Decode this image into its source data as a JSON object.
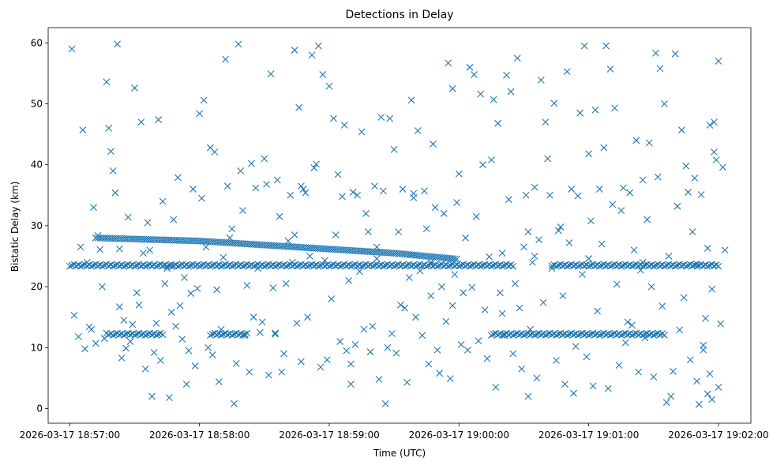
{
  "chart_data": {
    "type": "scatter",
    "title": "Detections in Delay",
    "xlabel": "Time (UTC)",
    "ylabel": "Bistatic Delay (km)",
    "marker": "x",
    "color": "#1f77b4",
    "grid": false,
    "legend": "none",
    "xlim": [
      "2026-03-17 18:56:50",
      "2026-03-17 19:02:15"
    ],
    "ylim": [
      -2.4,
      62.5
    ],
    "x_ticks": [
      "2026-03-17 18:57:00",
      "2026-03-17 18:58:00",
      "2026-03-17 18:59:00",
      "2026-03-17 19:00:00",
      "2026-03-17 19:01:00",
      "2026-03-17 19:02:00"
    ],
    "y_ticks": [
      0,
      10,
      20,
      30,
      40,
      50,
      60
    ],
    "bands": [
      {
        "y": 23.5,
        "segments": [
          [
            "18:57:00",
            "19:00:25"
          ],
          [
            "19:00:43",
            "19:02:00"
          ]
        ],
        "step_s": 1
      },
      {
        "y": 12.2,
        "segments": [
          [
            "18:57:17",
            "18:57:43"
          ],
          [
            "18:58:05",
            "18:58:22"
          ],
          [
            "19:00:15",
            "19:01:35"
          ]
        ],
        "step_s": 1
      },
      {
        "from": [
          [
            "18:57:12",
            28.0
          ],
          [
            "18:58:00",
            27.5
          ],
          [
            "18:58:45",
            26.5
          ],
          [
            "18:59:30",
            25.5
          ],
          [
            "19:00:00",
            24.5
          ]
        ],
        "step_s": 1
      }
    ],
    "points": [
      [
        "18:57:01",
        59.0
      ],
      [
        "18:57:06",
        45.7
      ],
      [
        "18:57:11",
        33.0
      ],
      [
        "18:57:13",
        28.4
      ],
      [
        "18:57:14",
        26.1
      ],
      [
        "18:57:17",
        53.6
      ],
      [
        "18:57:18",
        46.0
      ],
      [
        "18:57:19",
        42.2
      ],
      [
        "18:57:20",
        39.0
      ],
      [
        "18:57:21",
        35.4
      ],
      [
        "18:57:22",
        59.8
      ],
      [
        "18:57:23",
        16.7
      ],
      [
        "18:57:25",
        14.5
      ],
      [
        "18:57:27",
        31.4
      ],
      [
        "18:57:30",
        52.6
      ],
      [
        "18:57:33",
        47.0
      ],
      [
        "18:57:35",
        6.5
      ],
      [
        "18:57:38",
        2.0
      ],
      [
        "18:57:41",
        47.4
      ],
      [
        "18:57:43",
        34.0
      ],
      [
        "18:57:46",
        1.8
      ],
      [
        "18:57:50",
        37.9
      ],
      [
        "18:57:54",
        4.0
      ],
      [
        "18:57:57",
        36.0
      ],
      [
        "18:58:00",
        48.4
      ],
      [
        "18:58:02",
        50.6
      ],
      [
        "18:58:05",
        42.8
      ],
      [
        "18:58:07",
        42.1
      ],
      [
        "18:58:09",
        4.4
      ],
      [
        "18:58:12",
        57.3
      ],
      [
        "18:58:14",
        28.0
      ],
      [
        "18:58:16",
        0.8
      ],
      [
        "18:58:18",
        59.8
      ],
      [
        "18:58:20",
        32.5
      ],
      [
        "18:58:22",
        20.2
      ],
      [
        "18:58:26",
        36.2
      ],
      [
        "18:58:30",
        41.0
      ],
      [
        "18:58:33",
        54.9
      ],
      [
        "18:58:35",
        12.4
      ],
      [
        "18:58:38",
        6.0
      ],
      [
        "18:58:41",
        27.5
      ],
      [
        "18:58:44",
        58.8
      ],
      [
        "18:58:46",
        49.4
      ],
      [
        "18:58:49",
        35.4
      ],
      [
        "18:58:52",
        58.0
      ],
      [
        "18:58:54",
        40.1
      ],
      [
        "18:58:55",
        59.5
      ],
      [
        "18:58:57",
        54.8
      ],
      [
        "18:59:00",
        52.9
      ],
      [
        "18:59:02",
        47.6
      ],
      [
        "18:59:04",
        38.4
      ],
      [
        "18:59:07",
        46.5
      ],
      [
        "18:59:10",
        7.3
      ],
      [
        "18:59:13",
        35.0
      ],
      [
        "18:59:15",
        45.4
      ],
      [
        "18:59:18",
        29.0
      ],
      [
        "18:59:20",
        13.5
      ],
      [
        "18:59:23",
        4.8
      ],
      [
        "18:59:26",
        0.8
      ],
      [
        "18:59:28",
        47.6
      ],
      [
        "18:59:30",
        42.5
      ],
      [
        "18:59:33",
        17.0
      ],
      [
        "18:59:35",
        16.5
      ],
      [
        "18:59:38",
        50.6
      ],
      [
        "18:59:41",
        45.6
      ],
      [
        "18:59:44",
        35.7
      ],
      [
        "18:59:46",
        7.3
      ],
      [
        "18:59:48",
        43.4
      ],
      [
        "18:59:51",
        5.8
      ],
      [
        "18:59:53",
        32.0
      ],
      [
        "18:59:55",
        56.7
      ],
      [
        "18:59:57",
        52.5
      ],
      [
        "19:00:00",
        38.5
      ],
      [
        "19:00:02",
        19.0
      ],
      [
        "19:00:05",
        56.0
      ],
      [
        "19:00:07",
        54.8
      ],
      [
        "19:00:10",
        51.6
      ],
      [
        "19:00:13",
        8.2
      ],
      [
        "19:00:16",
        50.7
      ],
      [
        "19:00:18",
        46.8
      ],
      [
        "19:00:20",
        15.6
      ],
      [
        "19:00:22",
        54.7
      ],
      [
        "19:00:24",
        52.0
      ],
      [
        "19:00:27",
        57.5
      ],
      [
        "19:00:30",
        26.5
      ],
      [
        "19:00:32",
        2.0
      ],
      [
        "19:00:35",
        36.3
      ],
      [
        "19:00:38",
        53.9
      ],
      [
        "19:00:40",
        47.0
      ],
      [
        "19:00:42",
        35.0
      ],
      [
        "19:00:44",
        50.1
      ],
      [
        "19:00:47",
        29.8
      ],
      [
        "19:00:50",
        55.3
      ],
      [
        "19:00:53",
        2.5
      ],
      [
        "19:00:56",
        48.5
      ],
      [
        "19:00:58",
        59.5
      ],
      [
        "19:01:00",
        41.8
      ],
      [
        "19:01:03",
        49.0
      ],
      [
        "19:01:05",
        36.0
      ],
      [
        "19:01:08",
        59.5
      ],
      [
        "19:01:10",
        55.7
      ],
      [
        "19:01:12",
        49.3
      ],
      [
        "19:01:15",
        32.5
      ],
      [
        "19:01:18",
        14.2
      ],
      [
        "19:01:20",
        13.7
      ],
      [
        "19:01:23",
        6.0
      ],
      [
        "19:01:25",
        37.5
      ],
      [
        "19:01:28",
        43.6
      ],
      [
        "19:01:31",
        58.3
      ],
      [
        "19:01:33",
        55.8
      ],
      [
        "19:01:36",
        1.0
      ],
      [
        "19:01:38",
        2.0
      ],
      [
        "19:01:40",
        58.2
      ],
      [
        "19:01:43",
        45.7
      ],
      [
        "19:01:46",
        35.5
      ],
      [
        "19:01:49",
        37.8
      ],
      [
        "19:01:51",
        0.7
      ],
      [
        "19:01:53",
        10.4
      ],
      [
        "19:01:56",
        46.5
      ],
      [
        "19:01:58",
        47.0
      ],
      [
        "19:02:00",
        3.5
      ],
      [
        "18:57:02",
        15.3
      ],
      [
        "18:57:04",
        11.8
      ],
      [
        "18:57:07",
        9.8
      ],
      [
        "18:57:09",
        13.4
      ],
      [
        "18:57:12",
        10.7
      ],
      [
        "18:57:15",
        20.0
      ],
      [
        "18:57:16",
        11.5
      ],
      [
        "18:57:24",
        8.3
      ],
      [
        "18:57:26",
        9.9
      ],
      [
        "18:57:28",
        11.0
      ],
      [
        "18:57:29",
        13.8
      ],
      [
        "18:57:31",
        19.0
      ],
      [
        "18:57:32",
        17.0
      ],
      [
        "18:57:34",
        25.5
      ],
      [
        "18:57:36",
        30.5
      ],
      [
        "18:57:37",
        26.0
      ],
      [
        "18:57:39",
        9.2
      ],
      [
        "18:57:40",
        14.0
      ],
      [
        "18:57:42",
        7.9
      ],
      [
        "18:57:44",
        20.5
      ],
      [
        "18:57:45",
        23.0
      ],
      [
        "18:57:47",
        15.8
      ],
      [
        "18:57:48",
        31.0
      ],
      [
        "18:57:49",
        13.5
      ],
      [
        "18:57:51",
        16.9
      ],
      [
        "18:57:52",
        11.4
      ],
      [
        "18:57:53",
        21.5
      ],
      [
        "18:57:55",
        9.5
      ],
      [
        "18:57:56",
        18.9
      ],
      [
        "18:57:58",
        7.0
      ],
      [
        "18:57:59",
        19.7
      ],
      [
        "18:58:01",
        34.5
      ],
      [
        "18:58:03",
        26.5
      ],
      [
        "18:58:04",
        10.0
      ],
      [
        "18:58:06",
        8.8
      ],
      [
        "18:58:08",
        19.5
      ],
      [
        "18:58:10",
        13.0
      ],
      [
        "18:58:11",
        24.8
      ],
      [
        "18:58:13",
        36.5
      ],
      [
        "18:58:15",
        29.5
      ],
      [
        "18:58:17",
        7.4
      ],
      [
        "18:58:19",
        39.0
      ],
      [
        "18:58:21",
        12.0
      ],
      [
        "18:58:23",
        6.0
      ],
      [
        "18:58:24",
        40.2
      ],
      [
        "18:58:25",
        15.0
      ],
      [
        "18:58:27",
        23.0
      ],
      [
        "18:58:28",
        12.5
      ],
      [
        "18:58:29",
        14.2
      ],
      [
        "18:58:31",
        36.8
      ],
      [
        "18:58:32",
        5.5
      ],
      [
        "18:58:34",
        19.8
      ],
      [
        "18:58:36",
        37.5
      ],
      [
        "18:58:37",
        31.5
      ],
      [
        "18:58:39",
        9.0
      ],
      [
        "18:58:40",
        20.5
      ],
      [
        "18:58:42",
        35.0
      ],
      [
        "18:58:43",
        24.0
      ],
      [
        "18:58:45",
        14.0
      ],
      [
        "18:58:47",
        7.7
      ],
      [
        "18:58:48",
        36.0
      ],
      [
        "18:58:50",
        15.0
      ],
      [
        "18:58:51",
        25.0
      ],
      [
        "18:58:53",
        39.5
      ],
      [
        "18:58:56",
        6.8
      ],
      [
        "18:58:58",
        24.3
      ],
      [
        "18:58:59",
        8.0
      ],
      [
        "18:59:01",
        18.0
      ],
      [
        "18:59:03",
        28.5
      ],
      [
        "18:59:05",
        11.0
      ],
      [
        "18:59:06",
        34.8
      ],
      [
        "18:59:08",
        9.5
      ],
      [
        "18:59:09",
        21.0
      ],
      [
        "18:59:11",
        35.5
      ],
      [
        "18:59:12",
        10.5
      ],
      [
        "18:59:14",
        22.5
      ],
      [
        "18:59:16",
        13.0
      ],
      [
        "18:59:17",
        32.0
      ],
      [
        "18:59:19",
        9.3
      ],
      [
        "18:59:21",
        36.5
      ],
      [
        "18:59:22",
        26.5
      ],
      [
        "18:59:24",
        47.8
      ],
      [
        "18:59:25",
        35.7
      ],
      [
        "18:59:27",
        10.0
      ],
      [
        "18:59:29",
        12.3
      ],
      [
        "18:59:31",
        9.1
      ],
      [
        "18:59:32",
        29.0
      ],
      [
        "18:59:34",
        36.0
      ],
      [
        "18:59:36",
        4.3
      ],
      [
        "18:59:37",
        21.5
      ],
      [
        "18:59:39",
        35.3
      ],
      [
        "18:59:40",
        15.0
      ],
      [
        "18:59:42",
        22.6
      ],
      [
        "18:59:43",
        12.0
      ],
      [
        "18:59:45",
        29.5
      ],
      [
        "18:59:47",
        18.5
      ],
      [
        "18:59:49",
        33.0
      ],
      [
        "18:59:50",
        9.6
      ],
      [
        "18:59:52",
        20.0
      ],
      [
        "18:59:54",
        14.3
      ],
      [
        "18:59:56",
        4.9
      ],
      [
        "18:59:58",
        22.0
      ],
      [
        "18:59:59",
        33.8
      ],
      [
        "19:00:01",
        10.5
      ],
      [
        "19:00:03",
        28.0
      ],
      [
        "19:00:04",
        9.6
      ],
      [
        "19:00:06",
        19.9
      ],
      [
        "19:00:08",
        31.5
      ],
      [
        "19:00:09",
        11.1
      ],
      [
        "19:00:11",
        40.0
      ],
      [
        "19:00:12",
        16.2
      ],
      [
        "19:00:14",
        24.9
      ],
      [
        "19:00:15",
        40.8
      ],
      [
        "19:00:17",
        3.5
      ],
      [
        "19:00:19",
        19.0
      ],
      [
        "19:00:21",
        12.0
      ],
      [
        "19:00:23",
        34.3
      ],
      [
        "19:00:25",
        9.0
      ],
      [
        "19:00:26",
        20.5
      ],
      [
        "19:00:28",
        16.5
      ],
      [
        "19:00:29",
        6.5
      ],
      [
        "19:00:31",
        35.0
      ],
      [
        "19:00:33",
        13.0
      ],
      [
        "19:00:34",
        24.0
      ],
      [
        "19:00:36",
        5.0
      ],
      [
        "19:00:37",
        27.7
      ],
      [
        "19:00:39",
        17.4
      ],
      [
        "19:00:41",
        41.0
      ],
      [
        "19:00:43",
        23.0
      ],
      [
        "19:00:45",
        7.9
      ],
      [
        "19:00:46",
        29.2
      ],
      [
        "19:00:48",
        18.5
      ],
      [
        "19:00:49",
        4.0
      ],
      [
        "19:00:51",
        27.2
      ],
      [
        "19:00:52",
        36.0
      ],
      [
        "19:00:54",
        10.2
      ],
      [
        "19:00:55",
        34.9
      ],
      [
        "19:00:57",
        22.0
      ],
      [
        "19:00:59",
        8.5
      ],
      [
        "19:01:01",
        30.8
      ],
      [
        "19:01:02",
        3.7
      ],
      [
        "19:01:04",
        16.0
      ],
      [
        "19:01:06",
        27.0
      ],
      [
        "19:01:07",
        42.8
      ],
      [
        "19:01:09",
        3.3
      ],
      [
        "19:01:11",
        33.5
      ],
      [
        "19:01:13",
        20.4
      ],
      [
        "19:01:14",
        7.1
      ],
      [
        "19:01:16",
        36.2
      ],
      [
        "19:01:17",
        10.8
      ],
      [
        "19:01:19",
        35.4
      ],
      [
        "19:01:21",
        26.0
      ],
      [
        "19:01:22",
        44.0
      ],
      [
        "19:01:24",
        22.7
      ],
      [
        "19:01:26",
        11.6
      ],
      [
        "19:01:27",
        31.0
      ],
      [
        "19:01:29",
        20.0
      ],
      [
        "19:01:30",
        5.2
      ],
      [
        "19:01:32",
        38.0
      ],
      [
        "19:01:34",
        16.8
      ],
      [
        "19:01:35",
        50.0
      ],
      [
        "19:01:37",
        25.0
      ],
      [
        "19:01:39",
        6.1
      ],
      [
        "19:01:41",
        33.2
      ],
      [
        "19:01:42",
        12.9
      ],
      [
        "19:01:44",
        18.2
      ],
      [
        "19:01:45",
        39.8
      ],
      [
        "19:01:47",
        8.0
      ],
      [
        "19:01:48",
        29.0
      ],
      [
        "19:01:50",
        4.5
      ],
      [
        "19:01:52",
        35.1
      ],
      [
        "19:01:54",
        14.8
      ],
      [
        "19:01:55",
        26.3
      ],
      [
        "19:01:57",
        19.6
      ],
      [
        "19:01:59",
        40.8
      ],
      [
        "18:57:05",
        26.5
      ],
      [
        "18:57:08",
        24.0
      ],
      [
        "18:57:10",
        13.0
      ],
      [
        "18:57:47",
        23.3
      ],
      [
        "18:58:44",
        28.5
      ],
      [
        "18:59:57",
        16.9
      ],
      [
        "19:00:20",
        25.5
      ],
      [
        "19:00:35",
        25.0
      ],
      [
        "19:01:00",
        24.6
      ],
      [
        "19:01:25",
        24.0
      ],
      [
        "19:01:50",
        23.7
      ],
      [
        "19:02:01",
        13.9
      ],
      [
        "19:02:02",
        39.6
      ],
      [
        "19:01:58",
        42.1
      ],
      [
        "19:01:56",
        5.7
      ],
      [
        "19:01:57",
        1.5
      ],
      [
        "19:01:55",
        2.4
      ],
      [
        "19:01:53",
        9.6
      ],
      [
        "19:02:03",
        26.0
      ],
      [
        "19:02:00",
        57.0
      ],
      [
        "18:57:23",
        26.2
      ],
      [
        "18:58:47",
        36.5
      ],
      [
        "18:59:39",
        34.6
      ],
      [
        "19:00:32",
        29.0
      ],
      [
        "18:58:35",
        12.2
      ],
      [
        "18:59:10",
        4.0
      ],
      [
        "18:59:22",
        24.6
      ],
      [
        "18:59:47",
        24.0
      ]
    ]
  }
}
